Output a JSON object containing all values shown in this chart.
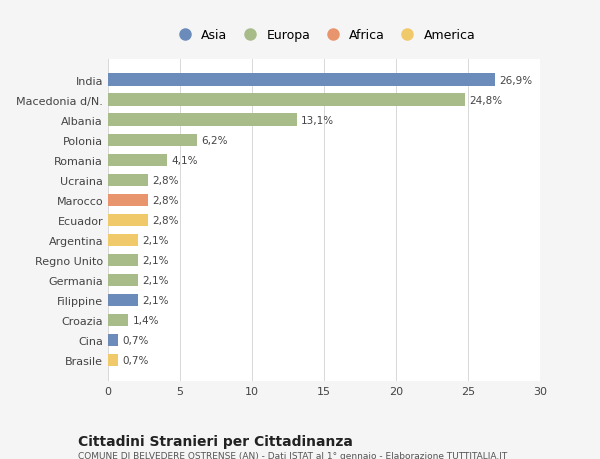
{
  "categories": [
    "India",
    "Macedonia d/N.",
    "Albania",
    "Polonia",
    "Romania",
    "Ucraina",
    "Marocco",
    "Ecuador",
    "Argentina",
    "Regno Unito",
    "Germania",
    "Filippine",
    "Croazia",
    "Cina",
    "Brasile"
  ],
  "values": [
    26.9,
    24.8,
    13.1,
    6.2,
    4.1,
    2.8,
    2.8,
    2.8,
    2.1,
    2.1,
    2.1,
    2.1,
    1.4,
    0.7,
    0.7
  ],
  "labels": [
    "26,9%",
    "24,8%",
    "13,1%",
    "6,2%",
    "4,1%",
    "2,8%",
    "2,8%",
    "2,8%",
    "2,1%",
    "2,1%",
    "2,1%",
    "2,1%",
    "1,4%",
    "0,7%",
    "0,7%"
  ],
  "colors": [
    "#6b8cba",
    "#a8bc8a",
    "#a8bc8a",
    "#a8bc8a",
    "#a8bc8a",
    "#a8bc8a",
    "#e8956d",
    "#f0c96a",
    "#f0c96a",
    "#a8bc8a",
    "#a8bc8a",
    "#6b8cba",
    "#a8bc8a",
    "#6b8cba",
    "#f0c96a"
  ],
  "legend_labels": [
    "Asia",
    "Europa",
    "Africa",
    "America"
  ],
  "legend_colors": [
    "#6b8cba",
    "#a8bc8a",
    "#e8956d",
    "#f0c96a"
  ],
  "title": "Cittadini Stranieri per Cittadinanza",
  "subtitle": "COMUNE DI BELVEDERE OSTRENSE (AN) - Dati ISTAT al 1° gennaio - Elaborazione TUTTITALIA.IT",
  "xlim": [
    0,
    30
  ],
  "xticks": [
    0,
    5,
    10,
    15,
    20,
    25,
    30
  ],
  "background_color": "#f5f5f5",
  "bar_background": "#ffffff",
  "grid_color": "#d8d8d8"
}
